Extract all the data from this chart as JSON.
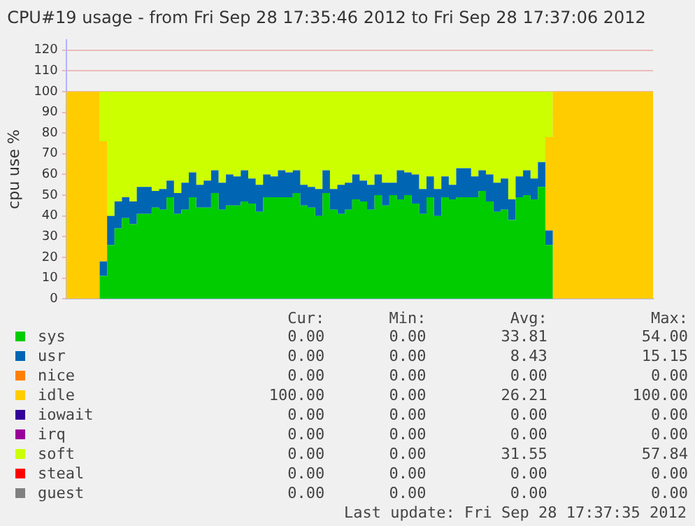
{
  "chart_data": {
    "type": "area",
    "title": "CPU#19 usage - from Fri Sep 28 17:35:46 2012 to Fri Sep 28 17:37:06 2012",
    "ylabel": "cpu use %",
    "categories": [
      null,
      null,
      null,
      null,
      null,
      null,
      null,
      null,
      null,
      null,
      null,
      null,
      null,
      null,
      null,
      null,
      null,
      null,
      null,
      null,
      null,
      null,
      null,
      null,
      null,
      null,
      null,
      null,
      null,
      null,
      null,
      null,
      null,
      null,
      null,
      null,
      null,
      null,
      null,
      null,
      null,
      null,
      null,
      null,
      null,
      null,
      null,
      null,
      null,
      null,
      null,
      null,
      null,
      null,
      null,
      null,
      null,
      null,
      null,
      null,
      null,
      null,
      null,
      null,
      null,
      null,
      null,
      null,
      null,
      null,
      null,
      null,
      null,
      null,
      null,
      null,
      null,
      null,
      null,
      null
    ],
    "stacked": true,
    "series": [
      {
        "name": "sys",
        "color": "#00cc00",
        "values": [
          0,
          0,
          0,
          0,
          0,
          11,
          26,
          34,
          39,
          36,
          41,
          41,
          44,
          43,
          49,
          41,
          43,
          49,
          44,
          44,
          51,
          43,
          45,
          45,
          47,
          46,
          42,
          49,
          49,
          49,
          49,
          51,
          45,
          44,
          40,
          51,
          43,
          41,
          43,
          48,
          47,
          43,
          50,
          45,
          50,
          48,
          50,
          46,
          41,
          49,
          40,
          49,
          48,
          49,
          49,
          49,
          52,
          47,
          42,
          43,
          38,
          49,
          50,
          48,
          54,
          26,
          0,
          0,
          0,
          0,
          0,
          0,
          0,
          0,
          0,
          0,
          0,
          0,
          0,
          0
        ]
      },
      {
        "name": "usr",
        "color": "#0066b3",
        "values": [
          0,
          0,
          0,
          0,
          0,
          7,
          14,
          13,
          10,
          11,
          13,
          13,
          8,
          10,
          8,
          10,
          13,
          12,
          11,
          13,
          11,
          13,
          15,
          14,
          15,
          12,
          13,
          11,
          10,
          13,
          12,
          11,
          10,
          10,
          13,
          11,
          10,
          14,
          13,
          12,
          10,
          12,
          10,
          11,
          6,
          14,
          11,
          14,
          12,
          10,
          13,
          10,
          7,
          14,
          14,
          10,
          10,
          13,
          14,
          15,
          10,
          10,
          12,
          10,
          12,
          7,
          0,
          0,
          0,
          0,
          0,
          0,
          0,
          0,
          0,
          0,
          0,
          0,
          0,
          0
        ]
      },
      {
        "name": "nice",
        "color": "#ff8000",
        "values": [
          null,
          null,
          null,
          null,
          null,
          null,
          null,
          null,
          null,
          null,
          null,
          null,
          null,
          null,
          null,
          null,
          null,
          null,
          null,
          null,
          null,
          null,
          null,
          null,
          null,
          null,
          null,
          null,
          null,
          null,
          null,
          null,
          null,
          null,
          null,
          null,
          null,
          null,
          null,
          null,
          null,
          null,
          null,
          null,
          null,
          null,
          null,
          null,
          null,
          null,
          null,
          null,
          null,
          null,
          null,
          null,
          null,
          null,
          null,
          null,
          null,
          null,
          null,
          null,
          null,
          null,
          null,
          null,
          null,
          null,
          null,
          null,
          null,
          null,
          null,
          null,
          null,
          null,
          null,
          null
        ]
      },
      {
        "name": "idle",
        "color": "#ffcc00",
        "values": [
          100,
          100,
          100,
          100,
          100,
          58,
          0,
          0,
          0,
          0,
          0,
          0,
          0,
          0,
          0,
          0,
          0,
          0,
          0,
          0,
          0,
          0,
          0,
          0,
          0,
          0,
          0,
          0,
          0,
          0,
          0,
          0,
          0,
          0,
          0,
          0,
          0,
          0,
          0,
          0,
          0,
          0,
          0,
          0,
          0,
          0,
          0,
          0,
          0,
          0,
          0,
          0,
          0,
          0,
          0,
          0,
          0,
          0,
          0,
          0,
          0,
          0,
          0,
          0,
          0,
          45,
          100,
          100,
          100,
          100,
          100,
          100,
          100,
          100,
          100,
          100,
          100,
          100,
          100,
          100
        ]
      },
      {
        "name": "iowait",
        "color": "#330099",
        "values": [
          null,
          null,
          null,
          null,
          null,
          null,
          null,
          null,
          null,
          null,
          null,
          null,
          null,
          null,
          null,
          null,
          null,
          null,
          null,
          null,
          null,
          null,
          null,
          null,
          null,
          null,
          null,
          null,
          null,
          null,
          null,
          null,
          null,
          null,
          null,
          null,
          null,
          null,
          null,
          null,
          null,
          null,
          null,
          null,
          null,
          null,
          null,
          null,
          null,
          null,
          null,
          null,
          null,
          null,
          null,
          null,
          null,
          null,
          null,
          null,
          null,
          null,
          null,
          null,
          null,
          null,
          null,
          null,
          null,
          null,
          null,
          null,
          null,
          null,
          null,
          null,
          null,
          null,
          null,
          null
        ]
      },
      {
        "name": "irq",
        "color": "#990099",
        "values": [
          null,
          null,
          null,
          null,
          null,
          null,
          null,
          null,
          null,
          null,
          null,
          null,
          null,
          null,
          null,
          null,
          null,
          null,
          null,
          null,
          null,
          null,
          null,
          null,
          null,
          null,
          null,
          null,
          null,
          null,
          null,
          null,
          null,
          null,
          null,
          null,
          null,
          null,
          null,
          null,
          null,
          null,
          null,
          null,
          null,
          null,
          null,
          null,
          null,
          null,
          null,
          null,
          null,
          null,
          null,
          null,
          null,
          null,
          null,
          null,
          null,
          null,
          null,
          null,
          null,
          null,
          null,
          null,
          null,
          null,
          null,
          null,
          null,
          null,
          null,
          null,
          null,
          null,
          null,
          null
        ]
      },
      {
        "name": "soft",
        "color": "#ccff00",
        "values": [
          0,
          0,
          0,
          0,
          0,
          24,
          60,
          53,
          51,
          53,
          46,
          46,
          48,
          47,
          43,
          49,
          44,
          39,
          45,
          43,
          38,
          44,
          40,
          41,
          38,
          42,
          45,
          40,
          41,
          38,
          39,
          38,
          45,
          46,
          47,
          38,
          47,
          45,
          44,
          40,
          43,
          45,
          40,
          44,
          44,
          38,
          39,
          40,
          47,
          41,
          47,
          41,
          45,
          37,
          37,
          41,
          38,
          40,
          44,
          42,
          52,
          41,
          38,
          42,
          34,
          22,
          0,
          0,
          0,
          0,
          0,
          0,
          0,
          0,
          0,
          0,
          0,
          0,
          0,
          0
        ]
      },
      {
        "name": "steal",
        "color": "#ff0000",
        "values": [
          null,
          null,
          null,
          null,
          null,
          null,
          null,
          null,
          null,
          null,
          null,
          null,
          null,
          null,
          null,
          null,
          null,
          null,
          null,
          null,
          null,
          null,
          null,
          null,
          null,
          null,
          null,
          null,
          null,
          null,
          null,
          null,
          null,
          null,
          null,
          null,
          null,
          null,
          null,
          null,
          null,
          null,
          null,
          null,
          null,
          null,
          null,
          null,
          null,
          null,
          null,
          null,
          null,
          null,
          null,
          null,
          null,
          null,
          null,
          null,
          null,
          null,
          null,
          null,
          null,
          null,
          null,
          null,
          null,
          null,
          null,
          null,
          null,
          null,
          null,
          null,
          null,
          null,
          null,
          null
        ]
      },
      {
        "name": "guest",
        "color": "#808080",
        "values": [
          null,
          null,
          null,
          null,
          null,
          null,
          null,
          null,
          null,
          null,
          null,
          null,
          null,
          null,
          null,
          null,
          null,
          null,
          null,
          null,
          null,
          null,
          null,
          null,
          null,
          null,
          null,
          null,
          null,
          null,
          null,
          null,
          null,
          null,
          null,
          null,
          null,
          null,
          null,
          null,
          null,
          null,
          null,
          null,
          null,
          null,
          null,
          null,
          null,
          null,
          null,
          null,
          null,
          null,
          null,
          null,
          null,
          null,
          null,
          null,
          null,
          null,
          null,
          null,
          null,
          null,
          null,
          null,
          null,
          null,
          null,
          null,
          null,
          null,
          null,
          null,
          null,
          null,
          null,
          null
        ]
      }
    ],
    "ylim": [
      0,
      125
    ],
    "yticks": [
      0,
      10,
      20,
      30,
      40,
      50,
      60,
      70,
      80,
      90,
      100,
      110,
      120
    ],
    "grid": "y",
    "legend": "bottom",
    "annotations": [
      "Cur:",
      "Min:",
      "Avg:",
      "Max:",
      "0.00",
      "0.00",
      "33.81",
      "54.00",
      "0.00",
      "0.00",
      "8.43",
      "15.15",
      "0.00",
      "0.00",
      "0.00",
      "0.00",
      "100.00",
      "0.00",
      "26.21",
      "100.00",
      "0.00",
      "0.00",
      "0.00",
      "0.00",
      "0.00",
      "0.00",
      "0.00",
      "0.00",
      "0.00",
      "0.00",
      "31.55",
      "57.84",
      "0.00",
      "0.00",
      "0.00",
      "0.00",
      "0.00",
      "0.00",
      "0.00",
      "0.00",
      "Last update:  Fri Sep 28 17:37:35 2012"
    ]
  }
}
